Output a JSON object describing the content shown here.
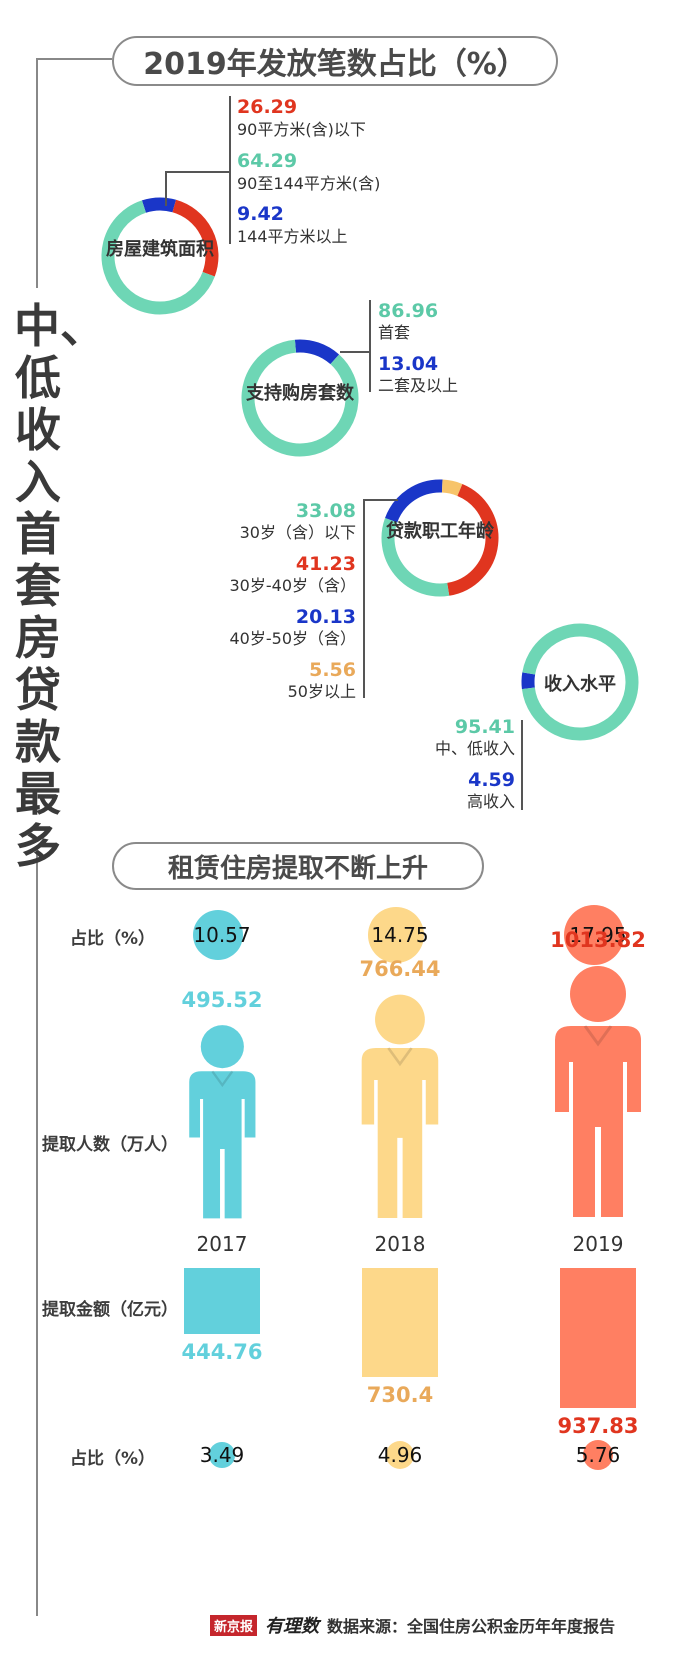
{
  "page": {
    "vertical_title": "中、低收入首套房贷款最多",
    "section1_title": "2019年发放笔数占比（%）",
    "section2_title": "租赁住房提取不断上升",
    "footer_logo_1": "新京报",
    "footer_logo_2": "有理数",
    "footer_source": "数据来源：全国住房公积金历年年度报告"
  },
  "colors": {
    "teal": "#6ed6b5",
    "red": "#e0351f",
    "blue": "#1a36c8",
    "yellow": "#f7c46a",
    "cyan": "#62d0dc",
    "peach": "#fdd88a",
    "salmon": "#ff7f62"
  },
  "chart_data": [
    {
      "type": "pie",
      "title": "房屋建筑面积",
      "slices": [
        {
          "label": "90平方米(含)以下",
          "value": 26.29,
          "color": "#e0351f"
        },
        {
          "label": "90至144平方米(含)",
          "value": 64.29,
          "color": "#6ed6b5"
        },
        {
          "label": "144平方米以上",
          "value": 9.42,
          "color": "#1a36c8"
        }
      ]
    },
    {
      "type": "pie",
      "title": "支持购房套数",
      "slices": [
        {
          "label": "首套",
          "value": 86.96,
          "color": "#6ed6b5"
        },
        {
          "label": "二套及以上",
          "value": 13.04,
          "color": "#1a36c8"
        }
      ]
    },
    {
      "type": "pie",
      "title": "贷款职工年龄",
      "slices": [
        {
          "label": "30岁（含）以下",
          "value": 33.08,
          "color": "#6ed6b5"
        },
        {
          "label": "30岁-40岁（含）",
          "value": 41.23,
          "color": "#e0351f"
        },
        {
          "label": "40岁-50岁（含）",
          "value": 20.13,
          "color": "#1a36c8"
        },
        {
          "label": "50岁以上",
          "value": 5.56,
          "color": "#f7c46a"
        }
      ]
    },
    {
      "type": "pie",
      "title": "收入水平",
      "slices": [
        {
          "label": "中、低收入",
          "value": 95.41,
          "color": "#6ed6b5"
        },
        {
          "label": "高收入",
          "value": 4.59,
          "color": "#1a36c8"
        }
      ]
    },
    {
      "type": "bar",
      "categories": [
        "2017",
        "2018",
        "2019"
      ],
      "row_labels": {
        "share_top": "占比（%）",
        "people": "提取人数（万人）",
        "amount": "提取金额（亿元）",
        "share_bottom": "占比（%）"
      },
      "share_top": [
        10.57,
        14.75,
        17.95
      ],
      "people": [
        495.52,
        766.44,
        1013.82
      ],
      "amount": [
        444.76,
        730.4,
        937.83
      ],
      "share_bottom": [
        3.49,
        4.96,
        5.76
      ],
      "colors": [
        "#62d0dc",
        "#fdd88a",
        "#ff7f62"
      ],
      "value_colors": [
        "#62d0dc",
        "#e9a95a",
        "#e0351f"
      ]
    }
  ]
}
